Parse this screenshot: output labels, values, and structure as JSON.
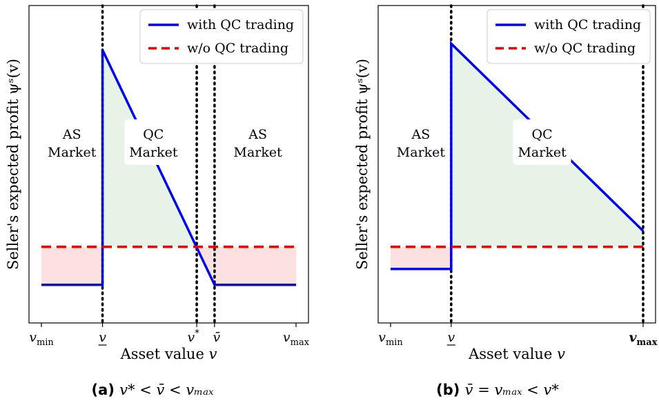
{
  "chart_data": [
    {
      "type": "line",
      "caption_tag": "(a)",
      "caption_expr": "v* < v̄ < v_max",
      "ylabel": "Seller's expected profit ψˢ(v)",
      "xlabel": "Asset value v",
      "xticks": [
        "v_min",
        "v",
        "v*",
        "v̄",
        "v_max"
      ],
      "tick_positions": [
        0.0,
        0.24,
        0.61,
        0.68,
        1.0
      ],
      "ylim": [
        0,
        1
      ],
      "legend": [
        "with QC trading",
        "w/o QC trading"
      ],
      "series": [
        {
          "name": "with QC trading",
          "color": "#0000ee",
          "style": "solid",
          "x": [
            0.0,
            0.24,
            0.24,
            0.68,
            1.0
          ],
          "y": [
            0.12,
            0.12,
            0.86,
            0.12,
            0.12
          ]
        },
        {
          "name": "w/o QC trading",
          "color": "#e00000",
          "style": "dashed",
          "x": [
            0.0,
            1.0
          ],
          "y": [
            0.24,
            0.24
          ]
        }
      ],
      "vlines": [
        0.24,
        0.61,
        0.68
      ],
      "region_labels": [
        {
          "line1": "AS",
          "line2": "Market",
          "x": 0.12,
          "y": 0.55,
          "boxed": false
        },
        {
          "line1": "QC",
          "line2": "Market",
          "x": 0.44,
          "y": 0.55,
          "boxed": true
        },
        {
          "line1": "AS",
          "line2": "Market",
          "x": 0.85,
          "y": 0.55,
          "boxed": false
        }
      ]
    },
    {
      "type": "line",
      "caption_tag": "(b)",
      "caption_expr": "v̄ = v_max < v*",
      "ylabel": "Seller's expected profit ψˢ(v)",
      "xlabel": "Asset value v",
      "xticks": [
        "v_min",
        "v",
        "v_max"
      ],
      "tick_positions": [
        0.0,
        0.24,
        1.0
      ],
      "ylim": [
        0,
        1
      ],
      "legend": [
        "with QC trading",
        "w/o QC trading"
      ],
      "series": [
        {
          "name": "with QC trading",
          "color": "#0000ee",
          "style": "solid",
          "x": [
            0.0,
            0.24,
            0.24,
            1.0
          ],
          "y": [
            0.17,
            0.17,
            0.88,
            0.29
          ]
        },
        {
          "name": "w/o QC trading",
          "color": "#e00000",
          "style": "dashed",
          "x": [
            0.0,
            1.0
          ],
          "y": [
            0.24,
            0.24
          ]
        }
      ],
      "vlines": [
        0.24,
        1.0
      ],
      "region_labels": [
        {
          "line1": "AS",
          "line2": "Market",
          "x": 0.12,
          "y": 0.55,
          "boxed": false
        },
        {
          "line1": "QC",
          "line2": "Market",
          "x": 0.6,
          "y": 0.55,
          "boxed": true
        }
      ]
    }
  ]
}
